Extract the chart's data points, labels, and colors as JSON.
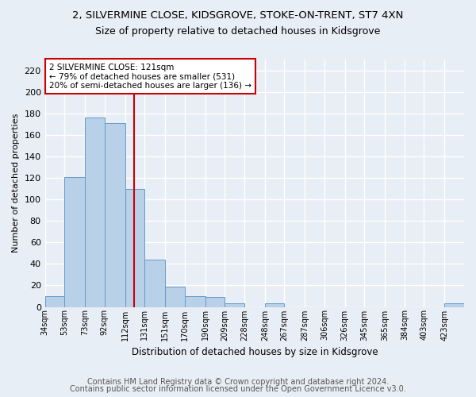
{
  "title": "2, SILVERMINE CLOSE, KIDSGROVE, STOKE-ON-TRENT, ST7 4XN",
  "subtitle": "Size of property relative to detached houses in Kidsgrove",
  "xlabel": "Distribution of detached houses by size in Kidsgrove",
  "ylabel": "Number of detached properties",
  "footer_line1": "Contains HM Land Registry data © Crown copyright and database right 2024.",
  "footer_line2": "Contains public sector information licensed under the Open Government Licence v3.0.",
  "bin_edges": [
    34,
    53,
    73,
    92,
    112,
    131,
    151,
    170,
    190,
    209,
    228,
    248,
    267,
    287,
    306,
    326,
    345,
    365,
    384,
    403,
    423
  ],
  "bar_heights": [
    10,
    121,
    176,
    171,
    110,
    44,
    19,
    10,
    9,
    3,
    0,
    3,
    0,
    0,
    0,
    0,
    0,
    0,
    0,
    0,
    3
  ],
  "bar_color": "#b8d0e8",
  "bar_edge_color": "#6699cc",
  "vline_x": 121,
  "vline_color": "#cc0000",
  "annotation_text": "2 SILVERMINE CLOSE: 121sqm\n← 79% of detached houses are smaller (531)\n20% of semi-detached houses are larger (136) →",
  "annotation_box_color": "#ffffff",
  "annotation_box_edge_color": "#cc0000",
  "ylim": [
    0,
    230
  ],
  "yticks": [
    0,
    20,
    40,
    60,
    80,
    100,
    120,
    140,
    160,
    180,
    200,
    220
  ],
  "bg_color": "#e8eef5",
  "plot_bg_color": "#e8eef5",
  "grid_color": "#ffffff",
  "title_fontsize": 9.5,
  "subtitle_fontsize": 9,
  "footer_fontsize": 7
}
